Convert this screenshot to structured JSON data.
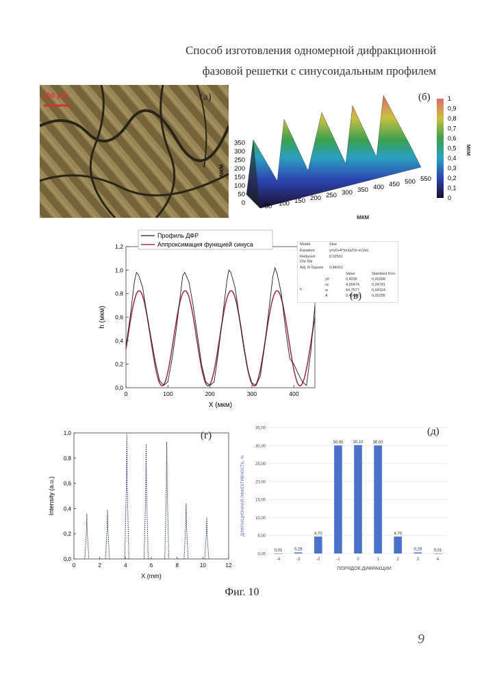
{
  "title": {
    "line1": "Способ изготовления одномерной дифракционной",
    "line2": "фазовой решетки с синусоидальным профилем"
  },
  "panels": {
    "a": {
      "label": "(а)",
      "scalebar": "100 μm"
    },
    "b": {
      "label": "(б)",
      "x_ticks": [
        "50",
        "100",
        "150",
        "200",
        "250",
        "300",
        "350",
        "400",
        "450",
        "500",
        "550"
      ],
      "x_label": "мкм",
      "y_ticks": [
        "0",
        "50",
        "100",
        "150",
        "200",
        "250",
        "300",
        "350"
      ],
      "y_label": "мкм",
      "colorbar_ticks": [
        "0",
        "0,1",
        "0,2",
        "0,3",
        "0,4",
        "0,5",
        "0,6",
        "0,7",
        "0,8",
        "0,9",
        "1"
      ],
      "colorbar_label": "мкм"
    },
    "c": {
      "label": "(в)"
    },
    "d": {
      "label": "(г)"
    },
    "e": {
      "label": "(д)"
    }
  },
  "fit_table": {
    "model_label": "Model",
    "model_value": "Sine",
    "equation_label": "Equation",
    "equation_value": "y=y0+A*sin(pi*(x-xc)/w)",
    "reduced_label": "Reduced",
    "chisqr_label": "Chi-Sqr",
    "chisqr_value": "0,02501",
    "adjr_label": "Adj. R-Square",
    "adjr_value": "0,84012",
    "col_value": "Value",
    "col_error": "Standard Erro",
    "group": "h",
    "params": [
      {
        "name": "y0",
        "value": "0,4206",
        "error": "0,00208"
      },
      {
        "name": "xc",
        "value": "4,00474",
        "error": "0,24701"
      },
      {
        "name": "w",
        "value": "54,7577",
        "error": "0,04324"
      },
      {
        "name": "A",
        "value": "0,40448",
        "error": "0,00295"
      }
    ]
  },
  "chart_data": [
    {
      "type": "line",
      "xlabel": "X (мкм)",
      "ylabel": "h (мкм)",
      "xlim": [
        0,
        450
      ],
      "ylim": [
        0,
        1.2
      ],
      "x_ticks": [
        0,
        100,
        200,
        300,
        400
      ],
      "y_ticks": [
        0,
        0.2,
        0.4,
        0.6,
        0.8,
        1.0,
        1.2
      ],
      "x_tick_labels": [
        "0",
        "100",
        "200",
        "300",
        "400"
      ],
      "y_tick_labels": [
        "0,0",
        "0,2",
        "0,4",
        "0,6",
        "0,8",
        "1,0",
        "1,2"
      ],
      "legend": "top",
      "series": [
        {
          "name": "Профиль ДФР",
          "color": "#1a1a1a",
          "x": [
            0,
            10,
            20,
            25,
            30,
            40,
            50,
            60,
            70,
            80,
            90,
            100,
            110,
            120,
            130,
            135,
            140,
            150,
            160,
            170,
            180,
            190,
            200,
            210,
            220,
            230,
            240,
            245,
            250,
            260,
            270,
            280,
            290,
            300,
            310,
            320,
            330,
            340,
            350,
            355,
            360,
            370,
            380,
            390,
            400,
            410,
            420,
            430,
            440,
            450
          ],
          "y": [
            0.35,
            0.6,
            0.9,
            0.98,
            0.96,
            0.85,
            0.62,
            0.42,
            0.22,
            0.06,
            0.02,
            0.05,
            0.25,
            0.5,
            0.8,
            0.95,
            0.98,
            0.9,
            0.7,
            0.45,
            0.2,
            0.05,
            0.02,
            0.05,
            0.3,
            0.6,
            0.9,
            1.0,
            0.98,
            0.85,
            0.6,
            0.35,
            0.15,
            0.04,
            0.02,
            0.1,
            0.35,
            0.65,
            0.95,
            1.02,
            0.97,
            0.8,
            0.5,
            0.25,
            0.2,
            0.12,
            0.05,
            0.02,
            0.3,
            0.7
          ]
        },
        {
          "name": "Аппроксимация функцией синуса",
          "color": "#a03050",
          "fit": {
            "y0": 0.4206,
            "xc": 4.00474,
            "w": 54.7577,
            "A": 0.40448
          }
        }
      ]
    },
    {
      "type": "line",
      "xlabel": "X (mm)",
      "ylabel": "Intensity (a.u.)",
      "xlim": [
        0,
        12
      ],
      "ylim": [
        0,
        1.0
      ],
      "x_ticks": [
        0,
        2,
        4,
        6,
        8,
        10,
        12
      ],
      "y_ticks": [
        0,
        0.2,
        0.4,
        0.6,
        0.8,
        1.0
      ],
      "x_tick_labels": [
        "0",
        "2",
        "4",
        "6",
        "8",
        "10",
        "12"
      ],
      "y_tick_labels": [
        "0,0",
        "0,2",
        "0,4",
        "0,6",
        "0,8",
        "1,0"
      ],
      "peaks": [
        {
          "x": 1.0,
          "y": 0.36
        },
        {
          "x": 2.6,
          "y": 0.39
        },
        {
          "x": 4.1,
          "y": 1.0
        },
        {
          "x": 5.6,
          "y": 0.91
        },
        {
          "x": 7.2,
          "y": 0.93
        },
        {
          "x": 8.7,
          "y": 0.44
        },
        {
          "x": 10.3,
          "y": 0.33
        }
      ]
    },
    {
      "type": "bar",
      "xlabel": "ПОРЯДОК ДИФРАКЦИИ",
      "ylabel": "ДИФРАКЦИОННАЯ ЭФФЕКТИВНОСТЬ, %",
      "ylim": [
        0,
        35
      ],
      "y_tick_labels": [
        "0,00",
        "5,00",
        "10,00",
        "15,00",
        "20,00",
        "25,00",
        "30,00",
        "35,00"
      ],
      "categories": [
        "-4",
        "-3",
        "-2",
        "-1",
        "0",
        "1",
        "2",
        "3",
        "4"
      ],
      "values": [
        0.01,
        0.29,
        4.7,
        30.0,
        30.1,
        30.0,
        4.7,
        0.29,
        0.01
      ],
      "value_labels": [
        "0,01",
        "0,29",
        "4,70",
        "30,00",
        "30,10",
        "30,00",
        "4,70",
        "0,29",
        "0,01"
      ],
      "bar_color": "#4a72c8"
    }
  ],
  "caption": "Фиг. 10",
  "page_number": "9"
}
